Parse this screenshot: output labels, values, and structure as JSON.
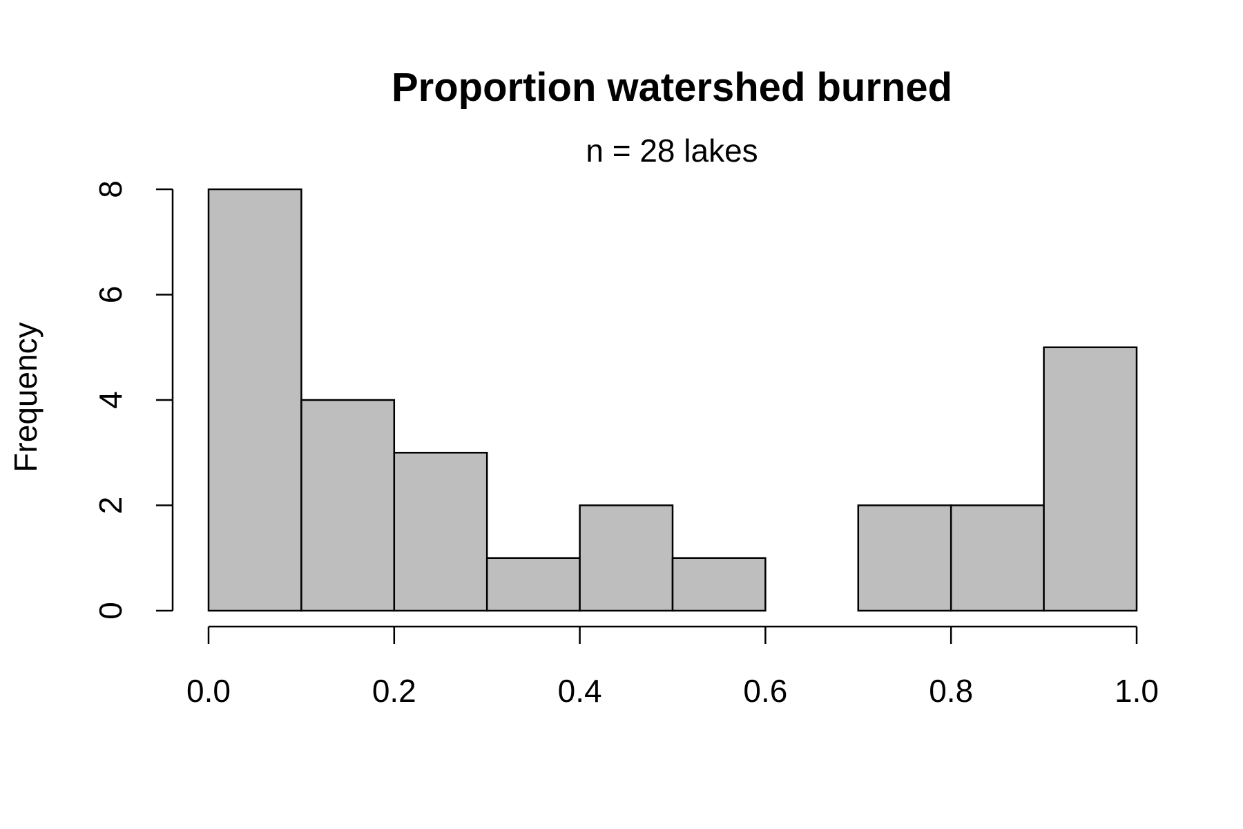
{
  "chart_data": {
    "type": "bar",
    "title": "Proportion watershed burned",
    "subtitle": "n = 28 lakes",
    "xlabel": "",
    "ylabel": "Frequency",
    "bins": [
      {
        "start": 0.0,
        "end": 0.1,
        "count": 8
      },
      {
        "start": 0.1,
        "end": 0.2,
        "count": 4
      },
      {
        "start": 0.2,
        "end": 0.3,
        "count": 3
      },
      {
        "start": 0.3,
        "end": 0.4,
        "count": 1
      },
      {
        "start": 0.4,
        "end": 0.5,
        "count": 2
      },
      {
        "start": 0.5,
        "end": 0.6,
        "count": 1
      },
      {
        "start": 0.6,
        "end": 0.7,
        "count": 0
      },
      {
        "start": 0.7,
        "end": 0.8,
        "count": 2
      },
      {
        "start": 0.8,
        "end": 0.9,
        "count": 2
      },
      {
        "start": 0.9,
        "end": 1.0,
        "count": 5
      }
    ],
    "xlim": [
      0,
      1
    ],
    "ylim": [
      0,
      8
    ],
    "x_ticks": [
      {
        "value": 0.0,
        "label": "0.0"
      },
      {
        "value": 0.2,
        "label": "0.2"
      },
      {
        "value": 0.4,
        "label": "0.4"
      },
      {
        "value": 0.6,
        "label": "0.6"
      },
      {
        "value": 0.8,
        "label": "0.8"
      },
      {
        "value": 1.0,
        "label": "1.0"
      }
    ],
    "y_ticks": [
      {
        "value": 0,
        "label": "0"
      },
      {
        "value": 2,
        "label": "2"
      },
      {
        "value": 4,
        "label": "4"
      },
      {
        "value": 6,
        "label": "6"
      },
      {
        "value": 8,
        "label": "8"
      }
    ],
    "grid": false,
    "bar_color": "#bebebe",
    "edge_color": "#000000"
  }
}
